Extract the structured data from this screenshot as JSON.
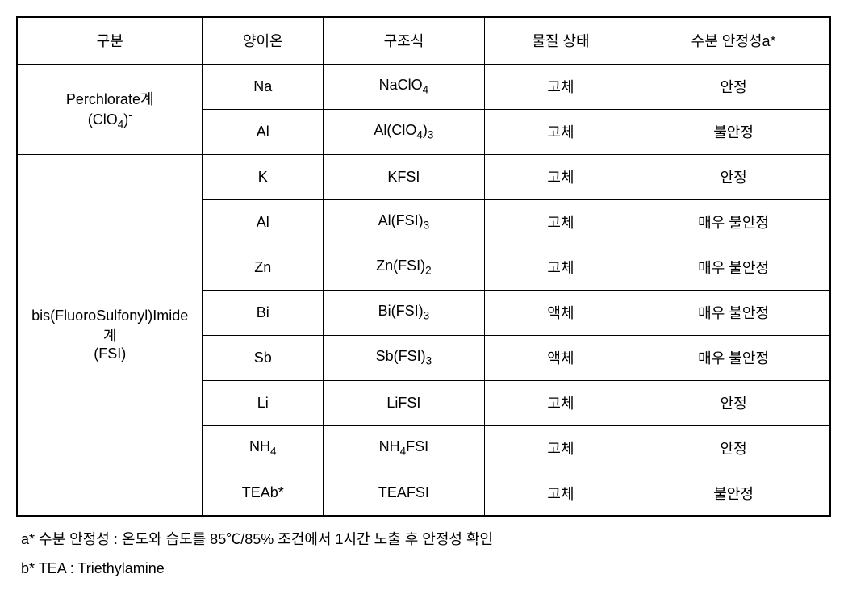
{
  "headers": {
    "col1": "구분",
    "col2": "양이온",
    "col3": "구조식",
    "col4": "물질 상태",
    "col5": "수분 안정성a*"
  },
  "group1": {
    "label_line1": "Perchlorate계",
    "label_line2_pre": "(ClO",
    "label_line2_sub": "4",
    "label_line2_post": ")",
    "label_line2_sup": "-",
    "rows": [
      {
        "cation": "Na",
        "formula_pre": "NaClO",
        "formula_sub": "4",
        "formula_post": "",
        "state": "고체",
        "stability": "안정"
      },
      {
        "cation": "Al",
        "formula_pre": "Al(ClO",
        "formula_sub": "4",
        "formula_mid": ")",
        "formula_sub2": "3",
        "formula_post": "",
        "state": "고체",
        "stability": "불안정"
      }
    ]
  },
  "group2": {
    "label_line1": "bis(FluoroSulfonyl)Imide",
    "label_line2": "계",
    "label_line3": "(FSI)",
    "rows": [
      {
        "cation": "K",
        "formula": "KFSI",
        "state": "고체",
        "stability": "안정"
      },
      {
        "cation": "Al",
        "formula_pre": "Al(FSI)",
        "formula_sub": "3",
        "state": "고체",
        "stability": "매우 불안정"
      },
      {
        "cation": "Zn",
        "formula_pre": "Zn(FSI)",
        "formula_sub": "2",
        "state": "고체",
        "stability": "매우 불안정"
      },
      {
        "cation": "Bi",
        "formula_pre": "Bi(FSI)",
        "formula_sub": "3",
        "state": "액체",
        "stability": "매우 불안정"
      },
      {
        "cation": "Sb",
        "formula_pre": "Sb(FSI)",
        "formula_sub": "3",
        "state": "액체",
        "stability": "매우 불안정"
      },
      {
        "cation": "Li",
        "formula": "LiFSI",
        "state": "고체",
        "stability": "안정"
      },
      {
        "cation_pre": "NH",
        "cation_sub": "4",
        "formula_pre": "NH",
        "formula_sub": "4",
        "formula_post": "FSI",
        "state": "고체",
        "stability": "안정"
      },
      {
        "cation": "TEAb*",
        "formula": "TEAFSI",
        "state": "고체",
        "stability": "불안정"
      }
    ]
  },
  "footnotes": {
    "a": "a* 수분 안정성 : 온도와 습도를 85℃/85% 조건에서 1시간 노출 후 안정성 확인",
    "b": "b* TEA : Triethylamine"
  }
}
